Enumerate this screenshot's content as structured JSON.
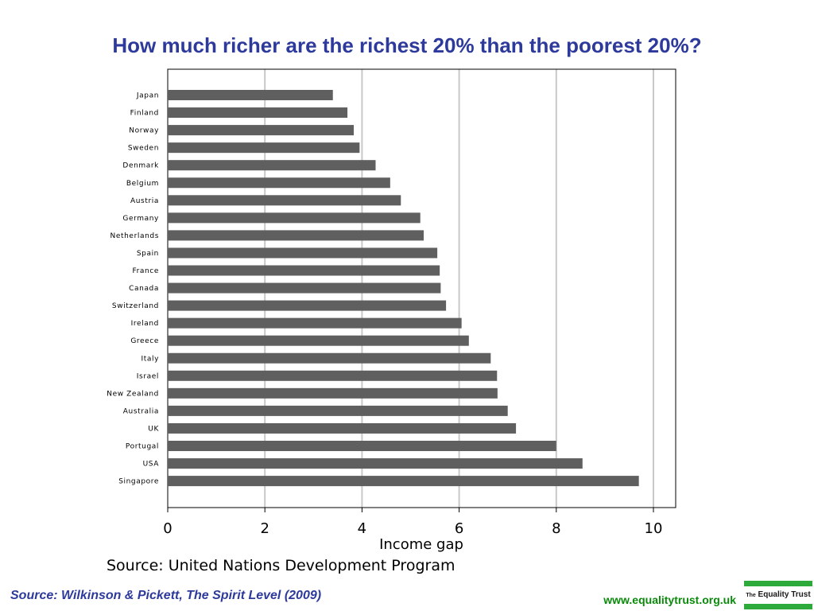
{
  "slide": {
    "title": "How much richer are the richest 20% than the poorest 20%?",
    "chart_source": "Source: United Nations Development Program",
    "citation": "Source: Wilkinson & Pickett, The Spirit Level (2009)",
    "url": "www.equalitytrust.org.uk",
    "logo_text": "The Equality Trust"
  },
  "colors": {
    "title": "#2d3a9c",
    "bar": "#5f5f5f",
    "grid": "#c8c8c8",
    "url": "#0a8a0a",
    "logo_green": "#2eaa3a"
  },
  "chart_data": {
    "type": "bar",
    "orientation": "horizontal",
    "title": "How much richer are the richest 20% than the poorest 20%?",
    "xlabel": "Income gap",
    "ylabel": "",
    "xlim": [
      0,
      10.45
    ],
    "xticks": [
      0,
      2,
      4,
      6,
      8,
      10
    ],
    "grid": "vertical",
    "categories": [
      "Japan",
      "Finland",
      "Norway",
      "Sweden",
      "Denmark",
      "Belgium",
      "Austria",
      "Germany",
      "Netherlands",
      "Spain",
      "France",
      "Canada",
      "Switzerland",
      "Ireland",
      "Greece",
      "Italy",
      "Israel",
      "New Zealand",
      "Australia",
      "UK",
      "Portugal",
      "USA",
      "Singapore"
    ],
    "values": [
      3.4,
      3.7,
      3.83,
      3.95,
      4.28,
      4.58,
      4.8,
      5.2,
      5.27,
      5.55,
      5.6,
      5.62,
      5.73,
      6.05,
      6.2,
      6.65,
      6.78,
      6.79,
      7.0,
      7.17,
      8.0,
      8.54,
      9.7
    ]
  }
}
